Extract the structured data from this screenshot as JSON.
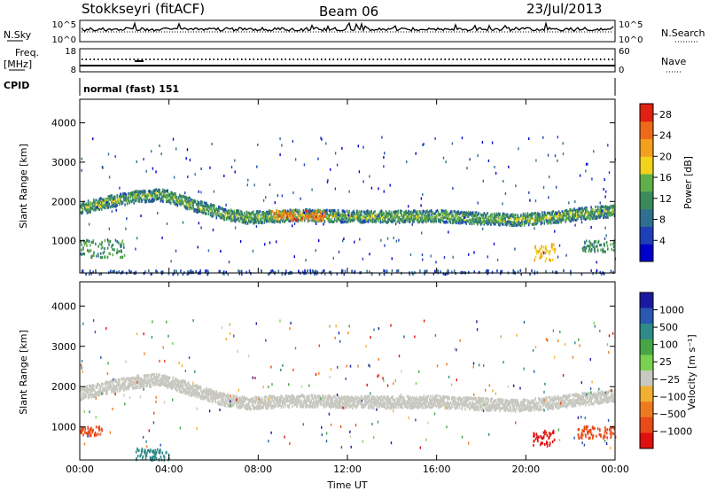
{
  "header": {
    "station": "Stokkseyri (fitACF)",
    "beam": "Beam 06",
    "date": "23/Jul/2013"
  },
  "top_panels": {
    "nsky_label": "N.Sky",
    "nsky_ticks": [
      "10^5",
      "10^0"
    ],
    "nsearch_label": "N.Search",
    "nsearch_ticks": [
      "10^5",
      "10^0"
    ],
    "freq_label_1": "Freq.",
    "freq_label_2": "[MHz]",
    "freq_ticks": [
      "18",
      "8"
    ],
    "nave_label": "Nave",
    "nave_ticks": [
      "60",
      "0"
    ],
    "cpid_label": "CPID",
    "cpid_value": "normal (fast) 151"
  },
  "colors": {
    "power": [
      "#0000cc",
      "#1f3fb8",
      "#2f6f8f",
      "#3a8a5a",
      "#5fb04a",
      "#f2d21a",
      "#f2a020",
      "#ee6a18",
      "#e02010"
    ],
    "velocity": [
      "#1a1aa0",
      "#2858b0",
      "#2f8a8a",
      "#46a646",
      "#7ad050",
      "#c8c8c0",
      "#f2b030",
      "#ee7a20",
      "#e84a18",
      "#e01010"
    ],
    "ground_scatter": "#c8c8c0"
  },
  "chart_data": [
    {
      "type": "heatmap",
      "name": "power",
      "ylabel": "Slant Range [km]",
      "yticks": [
        1000,
        2000,
        3000,
        4000
      ],
      "ylim": [
        180,
        4600
      ],
      "xticks": [
        "00:00",
        "04:00",
        "08:00",
        "12:00",
        "16:00",
        "20:00",
        "00:00"
      ],
      "xlim_hours": [
        0,
        24
      ],
      "colorbar": {
        "label": "Power [dB]",
        "ticks": [
          4,
          8,
          12,
          16,
          20,
          24,
          28
        ],
        "range": [
          0,
          30
        ]
      },
      "features": [
        {
          "kind": "band",
          "t": [
            0,
            0.5,
            1.5,
            2.5,
            3.5,
            4.0,
            5.0,
            6.5,
            7.5,
            8.5,
            10,
            12,
            14,
            16,
            18,
            19.5,
            20.5,
            21.5,
            22.5,
            24
          ],
          "range": [
            1850,
            1920,
            2050,
            2150,
            2200,
            2150,
            1950,
            1700,
            1620,
            1650,
            1680,
            1650,
            1640,
            1660,
            1600,
            1560,
            1600,
            1650,
            1720,
            1800
          ],
          "width": 300,
          "power": 14
        },
        {
          "kind": "blob",
          "t": [
            0.0,
            2.0
          ],
          "range": [
            600,
            1050
          ],
          "power": 12
        },
        {
          "kind": "blob",
          "t": [
            8.5,
            11.0
          ],
          "range": [
            1550,
            1800
          ],
          "power": 24
        },
        {
          "kind": "blob",
          "t": [
            20.3,
            21.3
          ],
          "range": [
            500,
            950
          ],
          "power": 20
        },
        {
          "kind": "blob",
          "t": [
            22.5,
            24.0
          ],
          "range": [
            750,
            1050
          ],
          "power": 12
        },
        {
          "kind": "strip",
          "t": [
            0,
            24
          ],
          "range": [
            180,
            280
          ],
          "power": 6
        }
      ]
    },
    {
      "type": "heatmap",
      "name": "velocity",
      "ylabel": "Slant Range [km]",
      "yticks": [
        1000,
        2000,
        3000,
        4000
      ],
      "ylim": [
        180,
        4600
      ],
      "xticks": [
        "00:00",
        "04:00",
        "08:00",
        "12:00",
        "16:00",
        "20:00",
        "00:00"
      ],
      "xlabel": "Time UT",
      "xlim_hours": [
        0,
        24
      ],
      "colorbar": {
        "label": "Velocity [m s⁻¹]",
        "ticks": [
          "1000",
          "500",
          "100",
          "25",
          "−25",
          "−100",
          "−500",
          "−1000"
        ]
      },
      "features": [
        {
          "kind": "band",
          "t": [
            0,
            0.5,
            1.5,
            2.5,
            3.5,
            4.0,
            5.0,
            6.5,
            7.5,
            8.5,
            10,
            12,
            14,
            16,
            18,
            19.5,
            20.5,
            21.5,
            22.5,
            24
          ],
          "range": [
            1850,
            1920,
            2050,
            2150,
            2200,
            2150,
            1950,
            1700,
            1620,
            1650,
            1680,
            1650,
            1640,
            1660,
            1600,
            1560,
            1600,
            1650,
            1720,
            1800
          ],
          "width": 300,
          "velocity": "ground"
        },
        {
          "kind": "blob",
          "t": [
            0.0,
            1.0
          ],
          "range": [
            800,
            1050
          ],
          "velocity": -500
        },
        {
          "kind": "blob",
          "t": [
            20.3,
            21.3
          ],
          "range": [
            550,
            950
          ],
          "velocity": -1000
        },
        {
          "kind": "blob",
          "t": [
            22.3,
            24.0
          ],
          "range": [
            750,
            1050
          ],
          "velocity": -500
        },
        {
          "kind": "blob",
          "t": [
            2.5,
            4.0
          ],
          "range": [
            200,
            500
          ],
          "velocity": 300
        }
      ]
    }
  ]
}
